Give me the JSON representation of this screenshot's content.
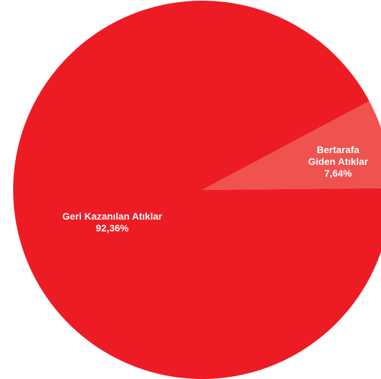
{
  "chart_data": {
    "type": "pie",
    "slices": [
      {
        "label_lines": [
          "Bertarafa",
          "Giden Atıklar",
          "7,64%"
        ],
        "value": 7.64,
        "color": "#ef5350"
      },
      {
        "label_lines": [
          "Geri Kazanılan Atıklar",
          "92,36%"
        ],
        "value": 92.36,
        "color": "#ed1c24"
      }
    ]
  }
}
